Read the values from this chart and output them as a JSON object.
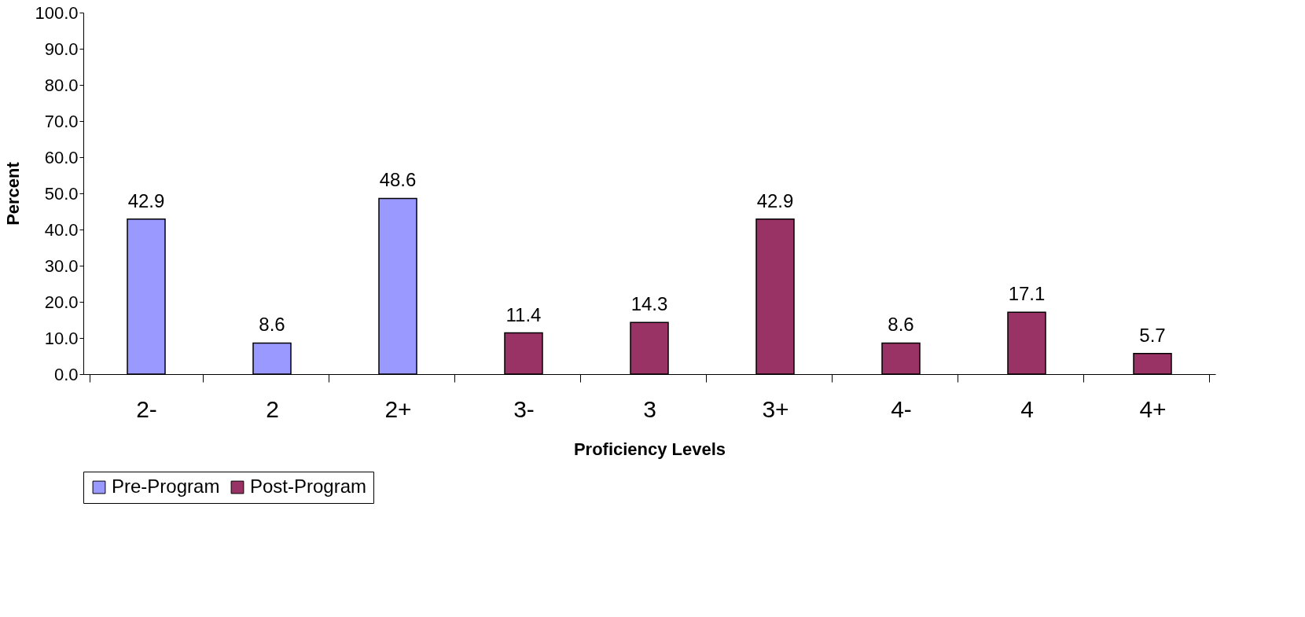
{
  "chart_data": {
    "type": "bar",
    "xlabel": "Proficiency Levels",
    "ylabel": "Percent",
    "categories": [
      "2-",
      "2",
      "2+",
      "3-",
      "3",
      "3+",
      "4-",
      "4",
      "4+"
    ],
    "series": [
      {
        "name": "Pre-Program",
        "color": "#9999ff",
        "values": [
          42.9,
          8.6,
          48.6,
          null,
          null,
          null,
          null,
          null,
          null
        ]
      },
      {
        "name": "Post-Program",
        "color": "#993366",
        "values": [
          null,
          null,
          null,
          11.4,
          14.3,
          42.9,
          8.6,
          17.1,
          5.7
        ]
      }
    ],
    "ylim": [
      0,
      100
    ],
    "yticks": [
      {
        "value": 0,
        "label": "0.0"
      },
      {
        "value": 10,
        "label": "10.0"
      },
      {
        "value": 20,
        "label": "20.0"
      },
      {
        "value": 30,
        "label": "30.0"
      },
      {
        "value": 40,
        "label": "40.0"
      },
      {
        "value": 50,
        "label": "50.0"
      },
      {
        "value": 60,
        "label": "60.0"
      },
      {
        "value": 70,
        "label": "70.0"
      },
      {
        "value": 80,
        "label": "80.0"
      },
      {
        "value": 90,
        "label": "90.0"
      },
      {
        "value": 100,
        "label": "100.0"
      }
    ],
    "data_labels": true,
    "grid": false,
    "legend": "bottom"
  }
}
